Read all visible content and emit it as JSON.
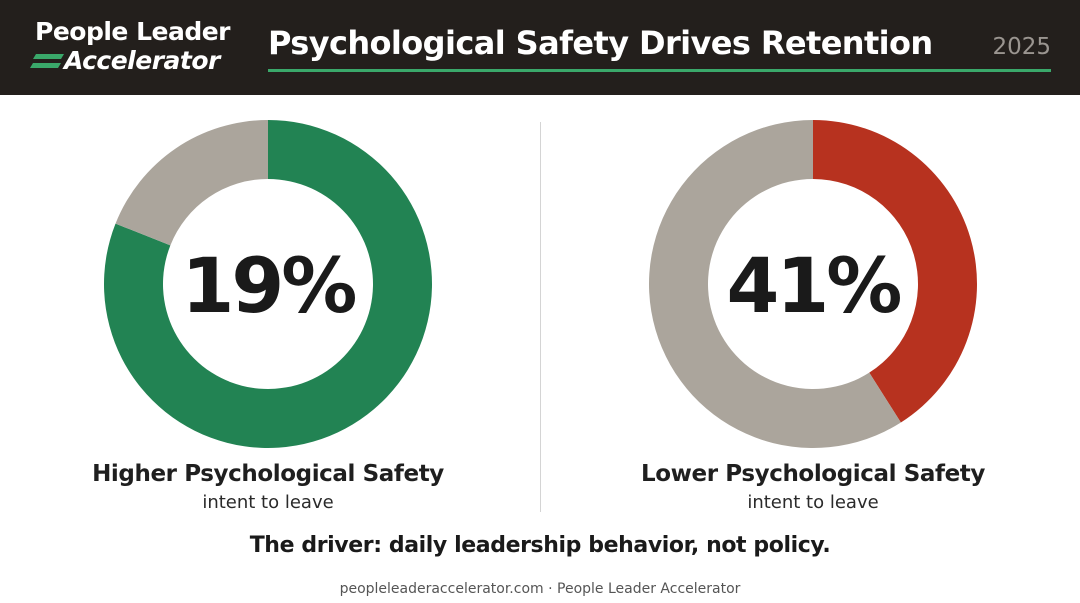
{
  "header": {
    "logo_line1": "People Leader",
    "logo_line2": "Accelerator",
    "title": "Psychological Safety Drives Retention",
    "year": "2025"
  },
  "chart_data": [
    {
      "type": "pie",
      "center_label": "19%",
      "value": 19,
      "label": "Higher Psychological Safety",
      "sublabel": "intent to leave",
      "highlight_value": 81,
      "colors": {
        "highlight": "#228353",
        "rest": "#aba59c"
      }
    },
    {
      "type": "pie",
      "center_label": "41%",
      "value": 41,
      "label": "Lower Psychological Safety",
      "sublabel": "intent to leave",
      "highlight_value": 41,
      "colors": {
        "highlight": "#b7321f",
        "rest": "#aba59c"
      }
    }
  ],
  "driver_text": "The driver: daily leadership behavior, not policy.",
  "footer_text": "peopleleaderaccelerator.com · People Leader Accelerator",
  "colors": {
    "header_bg": "#231f1c",
    "accent_green": "#3aa86a"
  }
}
